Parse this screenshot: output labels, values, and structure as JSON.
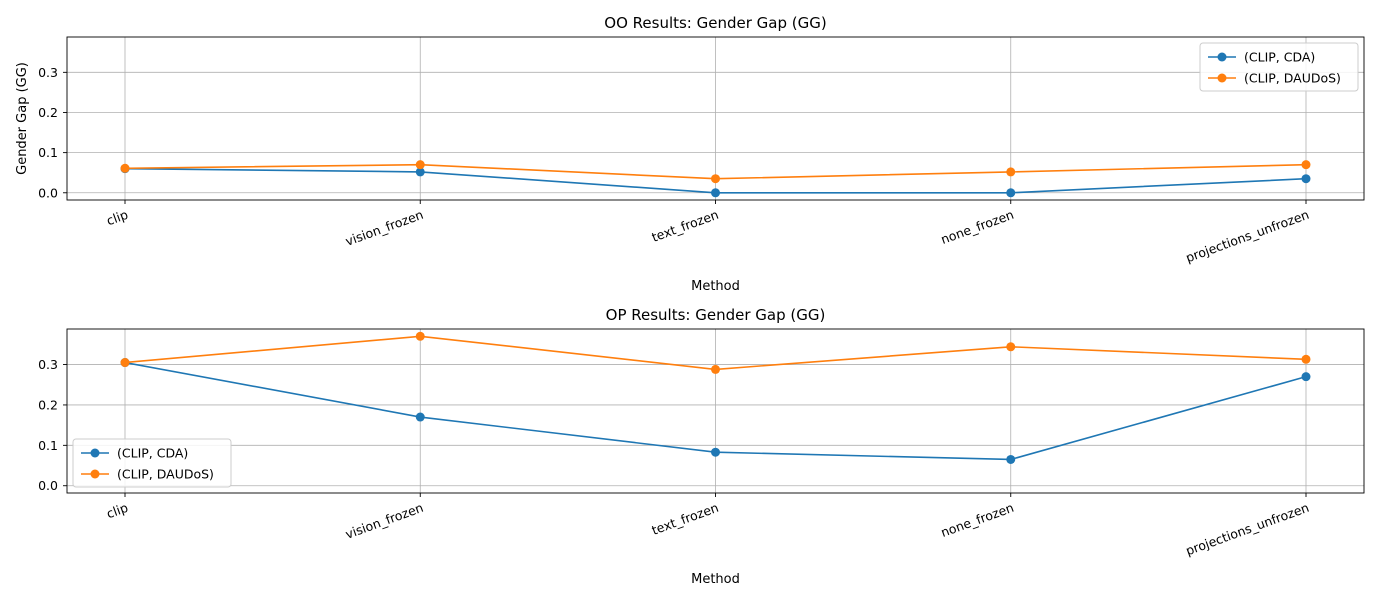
{
  "colors": {
    "series_1": "#1f77b4",
    "series_2": "#ff7f0e",
    "grid": "#b0b0b0",
    "axis": "#000000"
  },
  "chart_data": [
    {
      "type": "line",
      "title": "OO Results: Gender Gap (GG)",
      "xlabel": "Method",
      "ylabel": "Gender Gap (GG)",
      "categories": [
        "clip",
        "vision_frozen",
        "text_frozen",
        "none_frozen",
        "projections_unfrozen"
      ],
      "ylim": [
        -0.018,
        0.388
      ],
      "yticks": [
        0.0,
        0.1,
        0.2,
        0.3
      ],
      "ytick_labels": [
        "0.0",
        "0.1",
        "0.2",
        "0.3"
      ],
      "grid": true,
      "legend_position": "upper right",
      "series": [
        {
          "name": "(CLIP, CDA)",
          "values": [
            0.06,
            0.052,
            0.0,
            0.0,
            0.035
          ]
        },
        {
          "name": "(CLIP, DAUDoS)",
          "values": [
            0.061,
            0.07,
            0.035,
            0.052,
            0.07
          ]
        }
      ]
    },
    {
      "type": "line",
      "title": "OP Results: Gender Gap (GG)",
      "xlabel": "Method",
      "ylabel": "",
      "categories": [
        "clip",
        "vision_frozen",
        "text_frozen",
        "none_frozen",
        "projections_unfrozen"
      ],
      "ylim": [
        -0.018,
        0.388
      ],
      "yticks": [
        0.0,
        0.1,
        0.2,
        0.3
      ],
      "ytick_labels": [
        "0.0",
        "0.1",
        "0.2",
        "0.3"
      ],
      "grid": true,
      "legend_position": "lower left",
      "series": [
        {
          "name": "(CLIP, CDA)",
          "values": [
            0.305,
            0.17,
            0.083,
            0.065,
            0.27
          ]
        },
        {
          "name": "(CLIP, DAUDoS)",
          "values": [
            0.305,
            0.37,
            0.288,
            0.344,
            0.313
          ]
        }
      ]
    }
  ]
}
